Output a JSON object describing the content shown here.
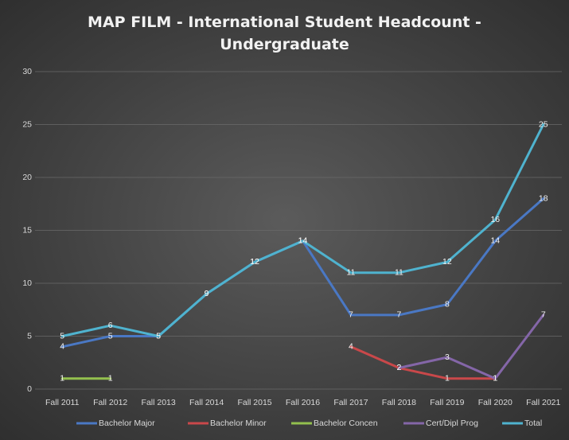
{
  "chart_data": {
    "type": "line",
    "title": "MAP FILM - International Student Headcount - Undergraduate",
    "categories": [
      "Fall 2011",
      "Fall 2012",
      "Fall 2013",
      "Fall 2014",
      "Fall 2015",
      "Fall 2016",
      "Fall 2017",
      "Fall 2018",
      "Fall 2019",
      "Fall 2020",
      "Fall 2021"
    ],
    "series": [
      {
        "name": "Bachelor Major",
        "color": "#4a78c4",
        "values": [
          4,
          5,
          5,
          9,
          12,
          14,
          7,
          7,
          8,
          14,
          18
        ]
      },
      {
        "name": "Bachelor Minor",
        "color": "#c9484a",
        "values": [
          null,
          null,
          null,
          null,
          null,
          null,
          4,
          2,
          1,
          1,
          null
        ]
      },
      {
        "name": "Bachelor Concen",
        "color": "#93c04e",
        "values": [
          1,
          1,
          null,
          null,
          null,
          null,
          null,
          null,
          null,
          null,
          null
        ]
      },
      {
        "name": "Cert/Dipl Prog",
        "color": "#8466a8",
        "values": [
          null,
          null,
          null,
          null,
          null,
          null,
          null,
          2,
          3,
          1,
          7
        ]
      },
      {
        "name": "Total",
        "color": "#4fb3cf",
        "values": [
          5,
          6,
          5,
          9,
          12,
          14,
          11,
          11,
          12,
          16,
          25
        ]
      }
    ],
    "ylim": [
      0,
      30
    ],
    "yticks": [
      0,
      5,
      10,
      15,
      20,
      25,
      30
    ],
    "grid": true,
    "legend": "bottom"
  }
}
